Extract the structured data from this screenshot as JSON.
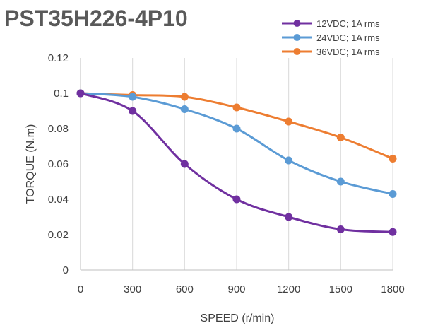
{
  "chart_data": {
    "type": "line",
    "title": "PST35H226-4P10",
    "xlabel": "SPEED (r/min)",
    "ylabel": "TORQUE (N.m)",
    "x": [
      0,
      300,
      600,
      900,
      1200,
      1500,
      1800
    ],
    "xticks": [
      "0",
      "300",
      "600",
      "900",
      "1200",
      "1500",
      "1800"
    ],
    "yticks": [
      "0",
      "0.02",
      "0.04",
      "0.06",
      "0.08",
      "0.1",
      "0.12"
    ],
    "xlim": [
      0,
      1800
    ],
    "ylim": [
      0,
      0.12
    ],
    "grid": "vertical",
    "legend": "top-right",
    "series": [
      {
        "name": "12VDC; 1A rms",
        "color": "#7030a0",
        "values": [
          0.1,
          0.09,
          0.06,
          0.04,
          0.03,
          0.023,
          0.0215
        ]
      },
      {
        "name": "24VDC; 1A rms",
        "color": "#5b9bd5",
        "values": [
          0.1,
          0.098,
          0.091,
          0.08,
          0.062,
          0.05,
          0.043
        ]
      },
      {
        "name": "36VDC; 1A rms",
        "color": "#ed7d31",
        "values": [
          0.1,
          0.099,
          0.098,
          0.092,
          0.084,
          0.075,
          0.063
        ]
      }
    ]
  }
}
